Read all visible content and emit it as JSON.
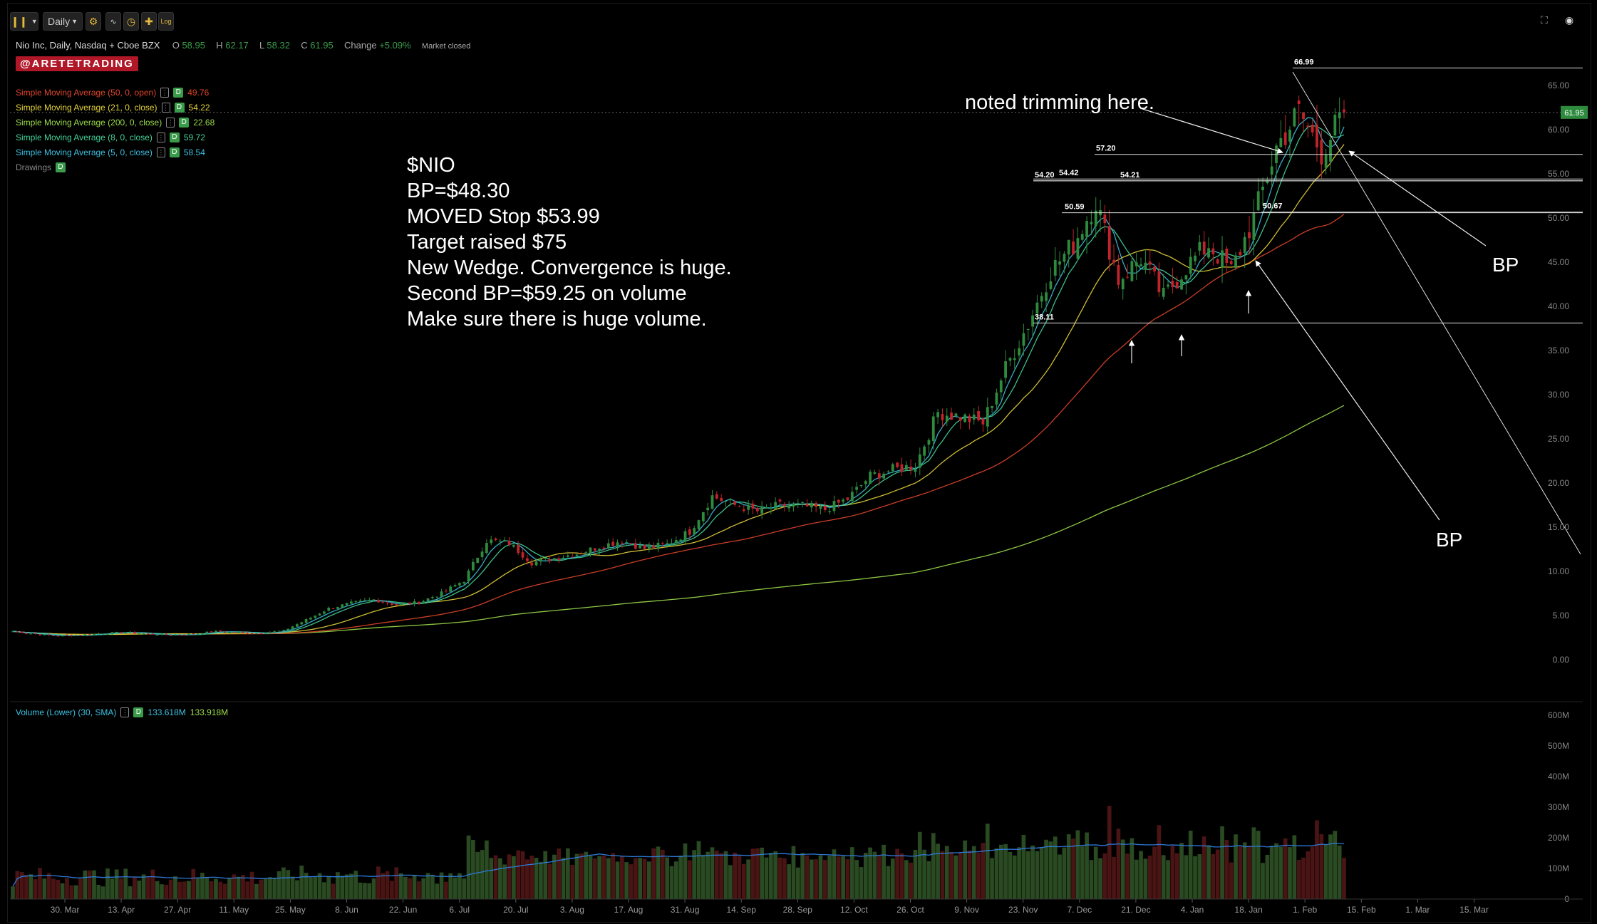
{
  "toolbar": {
    "interval": "Daily",
    "log_label": "Log"
  },
  "header": {
    "symbol_text": "Nio Inc, Daily, Nasdaq + Cboe BZX",
    "o_label": "O",
    "o_value": "58.95",
    "h_label": "H",
    "h_value": "62.17",
    "l_label": "L",
    "l_value": "58.32",
    "c_label": "C",
    "c_value": "61.95",
    "change_label": "Change",
    "change_value": "+5.09%",
    "status": "Market closed"
  },
  "watermark": "@ARETETRADING",
  "studies": [
    {
      "label": "Simple Moving Average (50, 0, open)",
      "value": "49.76",
      "color": "#e0452b"
    },
    {
      "label": "Simple Moving Average (21, 0, close)",
      "value": "54.22",
      "color": "#e5d23a"
    },
    {
      "label": "Simple Moving Average (200, 0, close)",
      "value": "22.68",
      "color": "#9bdc4a"
    },
    {
      "label": "Simple Moving Average (8, 0, close)",
      "value": "59.72",
      "color": "#44d49a"
    },
    {
      "label": "Simple Moving Average (5, 0, close)",
      "value": "58.54",
      "color": "#3cc0e0"
    }
  ],
  "drawings_label": "Drawings",
  "d_badge": "D",
  "volume_legend": {
    "label": "Volume (Lower) (30, SMA)",
    "value1": "133.618M",
    "value2": "133.918M"
  },
  "annotations": {
    "trim_note": "noted trimming here.",
    "plan_lines": [
      "$NIO",
      "BP=$48.30",
      "MOVED Stop $53.99",
      "Target raised $75",
      "New Wedge. Convergence is huge.",
      "Second BP=$59.25 on volume",
      "Make sure there is huge volume."
    ],
    "bp_upper": "BP",
    "bp_lower": "BP"
  },
  "colors": {
    "up": "#2e8b3e",
    "down": "#c0242a",
    "sma50": "#e0452b",
    "sma21": "#e5d23a",
    "sma200": "#9bdc4a",
    "sma8": "#44d49a",
    "sma5": "#3cc0e0",
    "vol_avg": "#2f7ad8"
  },
  "chart_data": {
    "type": "candlestick",
    "symbol": "NIO",
    "x_tick_labels": [
      "30. Mar",
      "13. Apr",
      "27. Apr",
      "11. May",
      "25. May",
      "8. Jun",
      "22. Jun",
      "6. Jul",
      "20. Jul",
      "3. Aug",
      "17. Aug",
      "31. Aug",
      "14. Sep",
      "28. Sep",
      "12. Oct",
      "26. Oct",
      "9. Nov",
      "23. Nov",
      "7. Dec",
      "21. Dec",
      "4. Jan",
      "18. Jan",
      "1. Feb",
      "15. Feb",
      "1. Mar",
      "15. Mar"
    ],
    "price_ticks": [
      0,
      5,
      10,
      15,
      20,
      25,
      30,
      35,
      40,
      45,
      50,
      55,
      60,
      65
    ],
    "price_tick_labels": [
      "0.00",
      "5.00",
      "10.00",
      "15.00",
      "20.00",
      "25.00",
      "30.00",
      "35.00",
      "40.00",
      "45.00",
      "50.00",
      "55.00",
      "60.00",
      "65.00"
    ],
    "ylim": [
      -1,
      72
    ],
    "last_price": 61.95,
    "last_price_label": "61.95",
    "volume_ticks": [
      0,
      100,
      200,
      300,
      400,
      500,
      600
    ],
    "volume_tick_labels": [
      "0",
      "100M",
      "200M",
      "300M",
      "400M",
      "500M",
      "600M"
    ],
    "volume_ylim": [
      0,
      620
    ],
    "price_closes_by_week": [
      3.2,
      2.9,
      2.7,
      2.8,
      3.0,
      3.1,
      2.9,
      2.8,
      2.9,
      3.2,
      3.1,
      3.0,
      3.3,
      4.5,
      5.8,
      6.4,
      6.8,
      6.2,
      6.5,
      7.5,
      9.0,
      13.5,
      13.2,
      11.0,
      11.5,
      12.0,
      12.8,
      13.5,
      12.6,
      13.1,
      14.5,
      18.5,
      17.5,
      16.8,
      17.5,
      17.4,
      17.0,
      18.2,
      20.8,
      21.5,
      22.0,
      28.0,
      27.5,
      26.8,
      33.0,
      38.0,
      44.0,
      47.0,
      52.0,
      43.0,
      45.5,
      41.0,
      44.5,
      47.0,
      44.0,
      50.0,
      58.0,
      62.0,
      57.5,
      61.95
    ],
    "sma_last_values": {
      "sma50": 49.76,
      "sma21": 54.22,
      "sma200": 22.68,
      "sma8": 59.72,
      "sma5": 58.54
    },
    "level_lines": [
      {
        "label": "66.99",
        "value": 66.99
      },
      {
        "label": "57.20",
        "value": 57.2
      },
      {
        "label": "54.42",
        "value": 54.42
      },
      {
        "label": "54.20",
        "value": 54.2
      },
      {
        "label": "54.21",
        "value": 54.21
      },
      {
        "label": "50.59",
        "value": 50.59
      },
      {
        "label": "50.67",
        "value": 50.67
      },
      {
        "label": "38.11",
        "value": 38.11
      }
    ]
  }
}
